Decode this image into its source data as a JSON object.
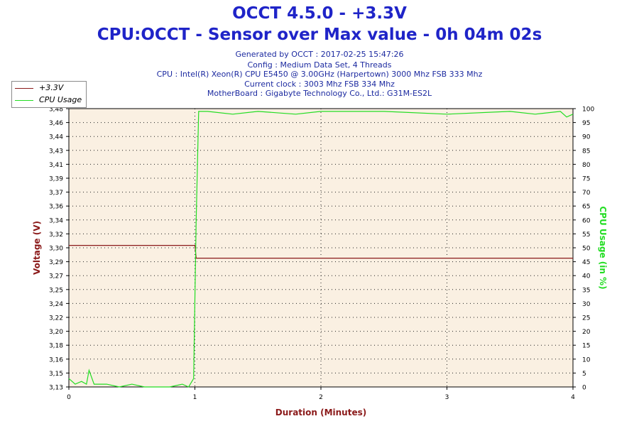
{
  "header": {
    "title": "OCCT 4.5.0 - +3.3V",
    "subtitle": "CPU:OCCT - Sensor over Max value - 0h 04m 02s",
    "info_lines": [
      "Generated by OCCT : 2017-02-25 15:47:26",
      "Config : Medium Data Set, 4 Threads",
      "CPU : Intel(R) Xeon(R) CPU E5450 @ 3.00GHz (Harpertown) 3000 Mhz FSB 333 Mhz",
      "Current clock : 3003 Mhz FSB 334 Mhz",
      "MotherBoard : Gigabyte Technology Co., Ltd.: G31M-ES2L"
    ]
  },
  "legend": [
    {
      "label": "+3.3V",
      "color": "#8b1a1a"
    },
    {
      "label": "CPU Usage",
      "color": "#22dd22"
    }
  ],
  "chart_data": {
    "type": "line",
    "xlabel": "Duration (Minutes)",
    "ylabel_left": "Voltage (V)",
    "ylabel_right": "CPU Usage (in %)",
    "xlim": [
      0,
      4
    ],
    "ylim_left": [
      3.13,
      3.48
    ],
    "ylim_right": [
      0,
      100
    ],
    "x_ticks": [
      "0",
      "1",
      "2",
      "3",
      "4"
    ],
    "y_left_ticks": [
      "3,13",
      "3,15",
      "3,16",
      "3,18",
      "3,20",
      "3,22",
      "3,24",
      "3,25",
      "3,27",
      "3,29",
      "3,30",
      "3,32",
      "3,34",
      "3,36",
      "3,37",
      "3,39",
      "3,41",
      "3,43",
      "3,44",
      "3,46",
      "3,48"
    ],
    "y_right_ticks": [
      "0",
      "5",
      "10",
      "15",
      "20",
      "25",
      "30",
      "35",
      "40",
      "45",
      "50",
      "55",
      "60",
      "65",
      "70",
      "75",
      "80",
      "85",
      "90",
      "95",
      "100"
    ],
    "grid": true,
    "legend_position": "top-left",
    "colors": {
      "voltage": "#8b1a1a",
      "cpu": "#22dd22",
      "plot_bg": "#faf0e2",
      "axis_left_label": "#8b1a1a",
      "axis_right_label": "#22dd22",
      "axis_x_label": "#8b1a1a"
    },
    "series": [
      {
        "name": "+3.3V",
        "axis": "left",
        "x": [
          0,
          1.0,
          1.01,
          4.0
        ],
        "values": [
          3.308,
          3.308,
          3.292,
          3.292
        ]
      },
      {
        "name": "CPU Usage",
        "axis": "right",
        "x": [
          0,
          0.05,
          0.1,
          0.14,
          0.16,
          0.2,
          0.3,
          0.4,
          0.5,
          0.6,
          0.7,
          0.8,
          0.9,
          0.95,
          0.99,
          1.01,
          1.03,
          1.1,
          1.3,
          1.5,
          1.8,
          2.0,
          2.5,
          3.0,
          3.5,
          3.7,
          3.9,
          3.95,
          4.0
        ],
        "values": [
          3,
          1,
          2,
          1,
          6,
          1,
          1,
          0,
          1,
          0,
          0,
          0,
          1,
          0,
          3,
          60,
          99,
          99,
          98,
          99,
          98,
          99,
          99,
          98,
          99,
          98,
          99,
          97,
          98
        ]
      }
    ]
  }
}
